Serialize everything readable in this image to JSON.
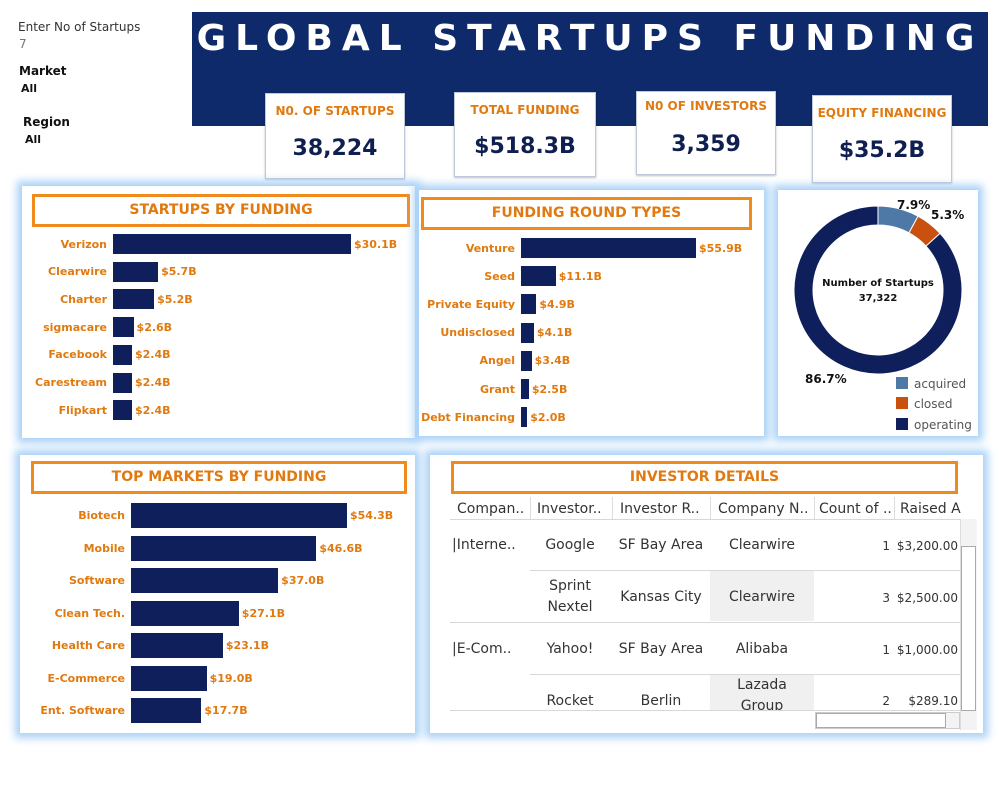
{
  "filters": {
    "startups_label": "Enter No of Startups",
    "startups_value": "7",
    "market_label": "Market",
    "market_value": "All",
    "region_label": "Region",
    "region_value": "All"
  },
  "header": {
    "title": "GLOBAL STARTUPS FUNDING"
  },
  "kpis": [
    {
      "label": "N0. OF STARTUPS",
      "value": "38,224"
    },
    {
      "label": "TOTAL FUNDING",
      "value": "$518.3B"
    },
    {
      "label": "N0 OF INVESTORS",
      "value": "3,359"
    },
    {
      "label": "EQUITY FINANCING",
      "value": "$35.2B"
    }
  ],
  "colors": {
    "navy": "#0f2a6b",
    "bar": "#0f1f5c",
    "accent": "#e07a10",
    "glow": "#a9d1f7",
    "acquired": "#4e79a7",
    "closed": "#c9500e",
    "operating": "#0f1f5c"
  },
  "startups_by_funding": {
    "title": "STARTUPS BY FUNDING",
    "chart_data": {
      "type": "bar",
      "categories": [
        "Verizon",
        "Clearwire",
        "Charter",
        "sigmacare",
        "Facebook",
        "Carestream",
        "Flipkart"
      ],
      "values": [
        30.1,
        5.7,
        5.2,
        2.6,
        2.4,
        2.4,
        2.4
      ],
      "labels": [
        "$30.1B",
        "$5.7B",
        "$5.2B",
        "$2.6B",
        "$2.4B",
        "$2.4B",
        "$2.4B"
      ]
    }
  },
  "funding_round_types": {
    "title": "FUNDING ROUND TYPES",
    "chart_data": {
      "type": "bar",
      "categories": [
        "Venture",
        "Seed",
        "Private Equity",
        "Undisclosed",
        "Angel",
        "Grant",
        "Debt Financing"
      ],
      "values": [
        55.9,
        11.1,
        4.9,
        4.1,
        3.4,
        2.5,
        2.0
      ],
      "labels": [
        "$55.9B",
        "$11.1B",
        "$4.9B",
        "$4.1B",
        "$3.4B",
        "$2.5B",
        "$2.0B"
      ]
    }
  },
  "startup_status": {
    "center_title": "Number of Startups",
    "center_value": "37,322",
    "chart_data": {
      "type": "pie",
      "categories": [
        "acquired",
        "closed",
        "operating"
      ],
      "values": [
        7.9,
        5.3,
        86.7
      ],
      "labels": [
        "7.9%",
        "5.3%",
        "86.7%"
      ]
    },
    "legend": [
      "acquired",
      "closed",
      "operating"
    ]
  },
  "top_markets": {
    "title": "TOP MARKETS BY FUNDING",
    "chart_data": {
      "type": "bar",
      "categories": [
        "Biotech",
        "Mobile",
        "Software",
        "Clean Tech.",
        "Health Care",
        "E-Commerce",
        "Ent. Software"
      ],
      "values": [
        54.3,
        46.6,
        37.0,
        27.1,
        23.1,
        19.0,
        17.7
      ],
      "labels": [
        "$54.3B",
        "$46.6B",
        "$37.0B",
        "$27.1B",
        "$23.1B",
        "$19.0B",
        "$17.7B"
      ]
    }
  },
  "investor_details": {
    "title": "INVESTOR DETAILS",
    "columns": [
      "Compan..",
      "Investor..",
      "Investor R..",
      "Company N..",
      "Count of ..",
      "Raised A"
    ],
    "rows": [
      {
        "market": "|Interne..",
        "investor": "Google",
        "region": "SF Bay Area",
        "company": "Clearwire",
        "count": "1",
        "raised": "$3,200.00"
      },
      {
        "market": "",
        "investor_l1": "Sprint",
        "investor_l2": "Nextel",
        "region": "Kansas City",
        "company": "Clearwire",
        "count": "3",
        "raised": "$2,500.00"
      },
      {
        "market": "|E-Com..",
        "investor": "Yahoo!",
        "region": "SF Bay Area",
        "company": "Alibaba",
        "count": "1",
        "raised": "$1,000.00"
      },
      {
        "market": "",
        "investor": "Rocket",
        "region": "Berlin",
        "company_l1": "Lazada",
        "company_l2": "Group",
        "count": "2",
        "raised": "$289.10"
      }
    ]
  }
}
